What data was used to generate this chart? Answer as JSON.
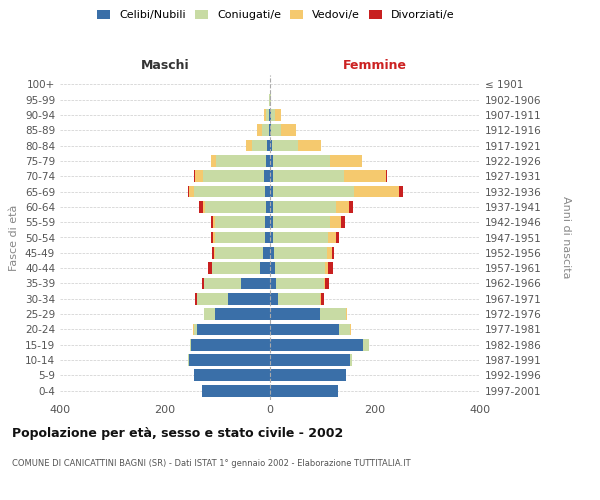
{
  "age_groups": [
    "0-4",
    "5-9",
    "10-14",
    "15-19",
    "20-24",
    "25-29",
    "30-34",
    "35-39",
    "40-44",
    "45-49",
    "50-54",
    "55-59",
    "60-64",
    "65-69",
    "70-74",
    "75-79",
    "80-84",
    "85-89",
    "90-94",
    "95-99",
    "100+"
  ],
  "birth_years": [
    "1997-2001",
    "1992-1996",
    "1987-1991",
    "1982-1986",
    "1977-1981",
    "1972-1976",
    "1967-1971",
    "1962-1966",
    "1957-1961",
    "1952-1956",
    "1947-1951",
    "1942-1946",
    "1937-1941",
    "1932-1936",
    "1927-1931",
    "1922-1926",
    "1917-1921",
    "1912-1916",
    "1907-1911",
    "1902-1906",
    "≤ 1901"
  ],
  "male": {
    "celibi": [
      130,
      145,
      155,
      150,
      140,
      105,
      80,
      55,
      20,
      14,
      10,
      9,
      8,
      10,
      12,
      8,
      5,
      2,
      2,
      0,
      0
    ],
    "coniugati": [
      0,
      0,
      2,
      2,
      5,
      20,
      60,
      70,
      90,
      90,
      95,
      95,
      115,
      135,
      115,
      95,
      30,
      14,
      6,
      1,
      0
    ],
    "vedovi": [
      0,
      0,
      0,
      0,
      2,
      0,
      0,
      0,
      1,
      2,
      3,
      4,
      5,
      10,
      15,
      10,
      10,
      8,
      3,
      0,
      0
    ],
    "divorziati": [
      0,
      0,
      0,
      0,
      0,
      1,
      2,
      5,
      8,
      4,
      5,
      5,
      8,
      2,
      2,
      0,
      0,
      0,
      0,
      0,
      0
    ]
  },
  "female": {
    "nubili": [
      130,
      145,
      152,
      178,
      132,
      95,
      15,
      12,
      10,
      8,
      6,
      5,
      5,
      5,
      5,
      5,
      3,
      2,
      2,
      0,
      0
    ],
    "coniugate": [
      0,
      0,
      5,
      10,
      20,
      50,
      80,
      90,
      95,
      100,
      105,
      110,
      120,
      155,
      135,
      110,
      50,
      18,
      8,
      1,
      0
    ],
    "vedove": [
      0,
      0,
      0,
      0,
      2,
      2,
      2,
      2,
      5,
      10,
      15,
      20,
      25,
      85,
      80,
      60,
      45,
      30,
      10,
      1,
      0
    ],
    "divorziate": [
      0,
      0,
      0,
      0,
      0,
      0,
      5,
      8,
      10,
      4,
      5,
      8,
      8,
      8,
      2,
      0,
      0,
      0,
      0,
      0,
      0
    ]
  },
  "colors": {
    "celibi": "#3a6fa8",
    "coniugati": "#c8dba4",
    "vedovi": "#f5c96e",
    "divorziati": "#c82020"
  },
  "xlim": 400,
  "title": "Popolazione per età, sesso e stato civile - 2002",
  "subtitle": "COMUNE DI CANICATTINI BAGNI (SR) - Dati ISTAT 1° gennaio 2002 - Elaborazione TUTTITALIA.IT",
  "ylabel": "Fasce di età",
  "ylabel_right": "Anni di nascita",
  "xlabel_left": "Maschi",
  "xlabel_right": "Femmine",
  "legend_labels": [
    "Celibi/Nubili",
    "Coniugati/e",
    "Vedovi/e",
    "Divorziati/e"
  ],
  "background_color": "#ffffff",
  "grid_color": "#cccccc"
}
